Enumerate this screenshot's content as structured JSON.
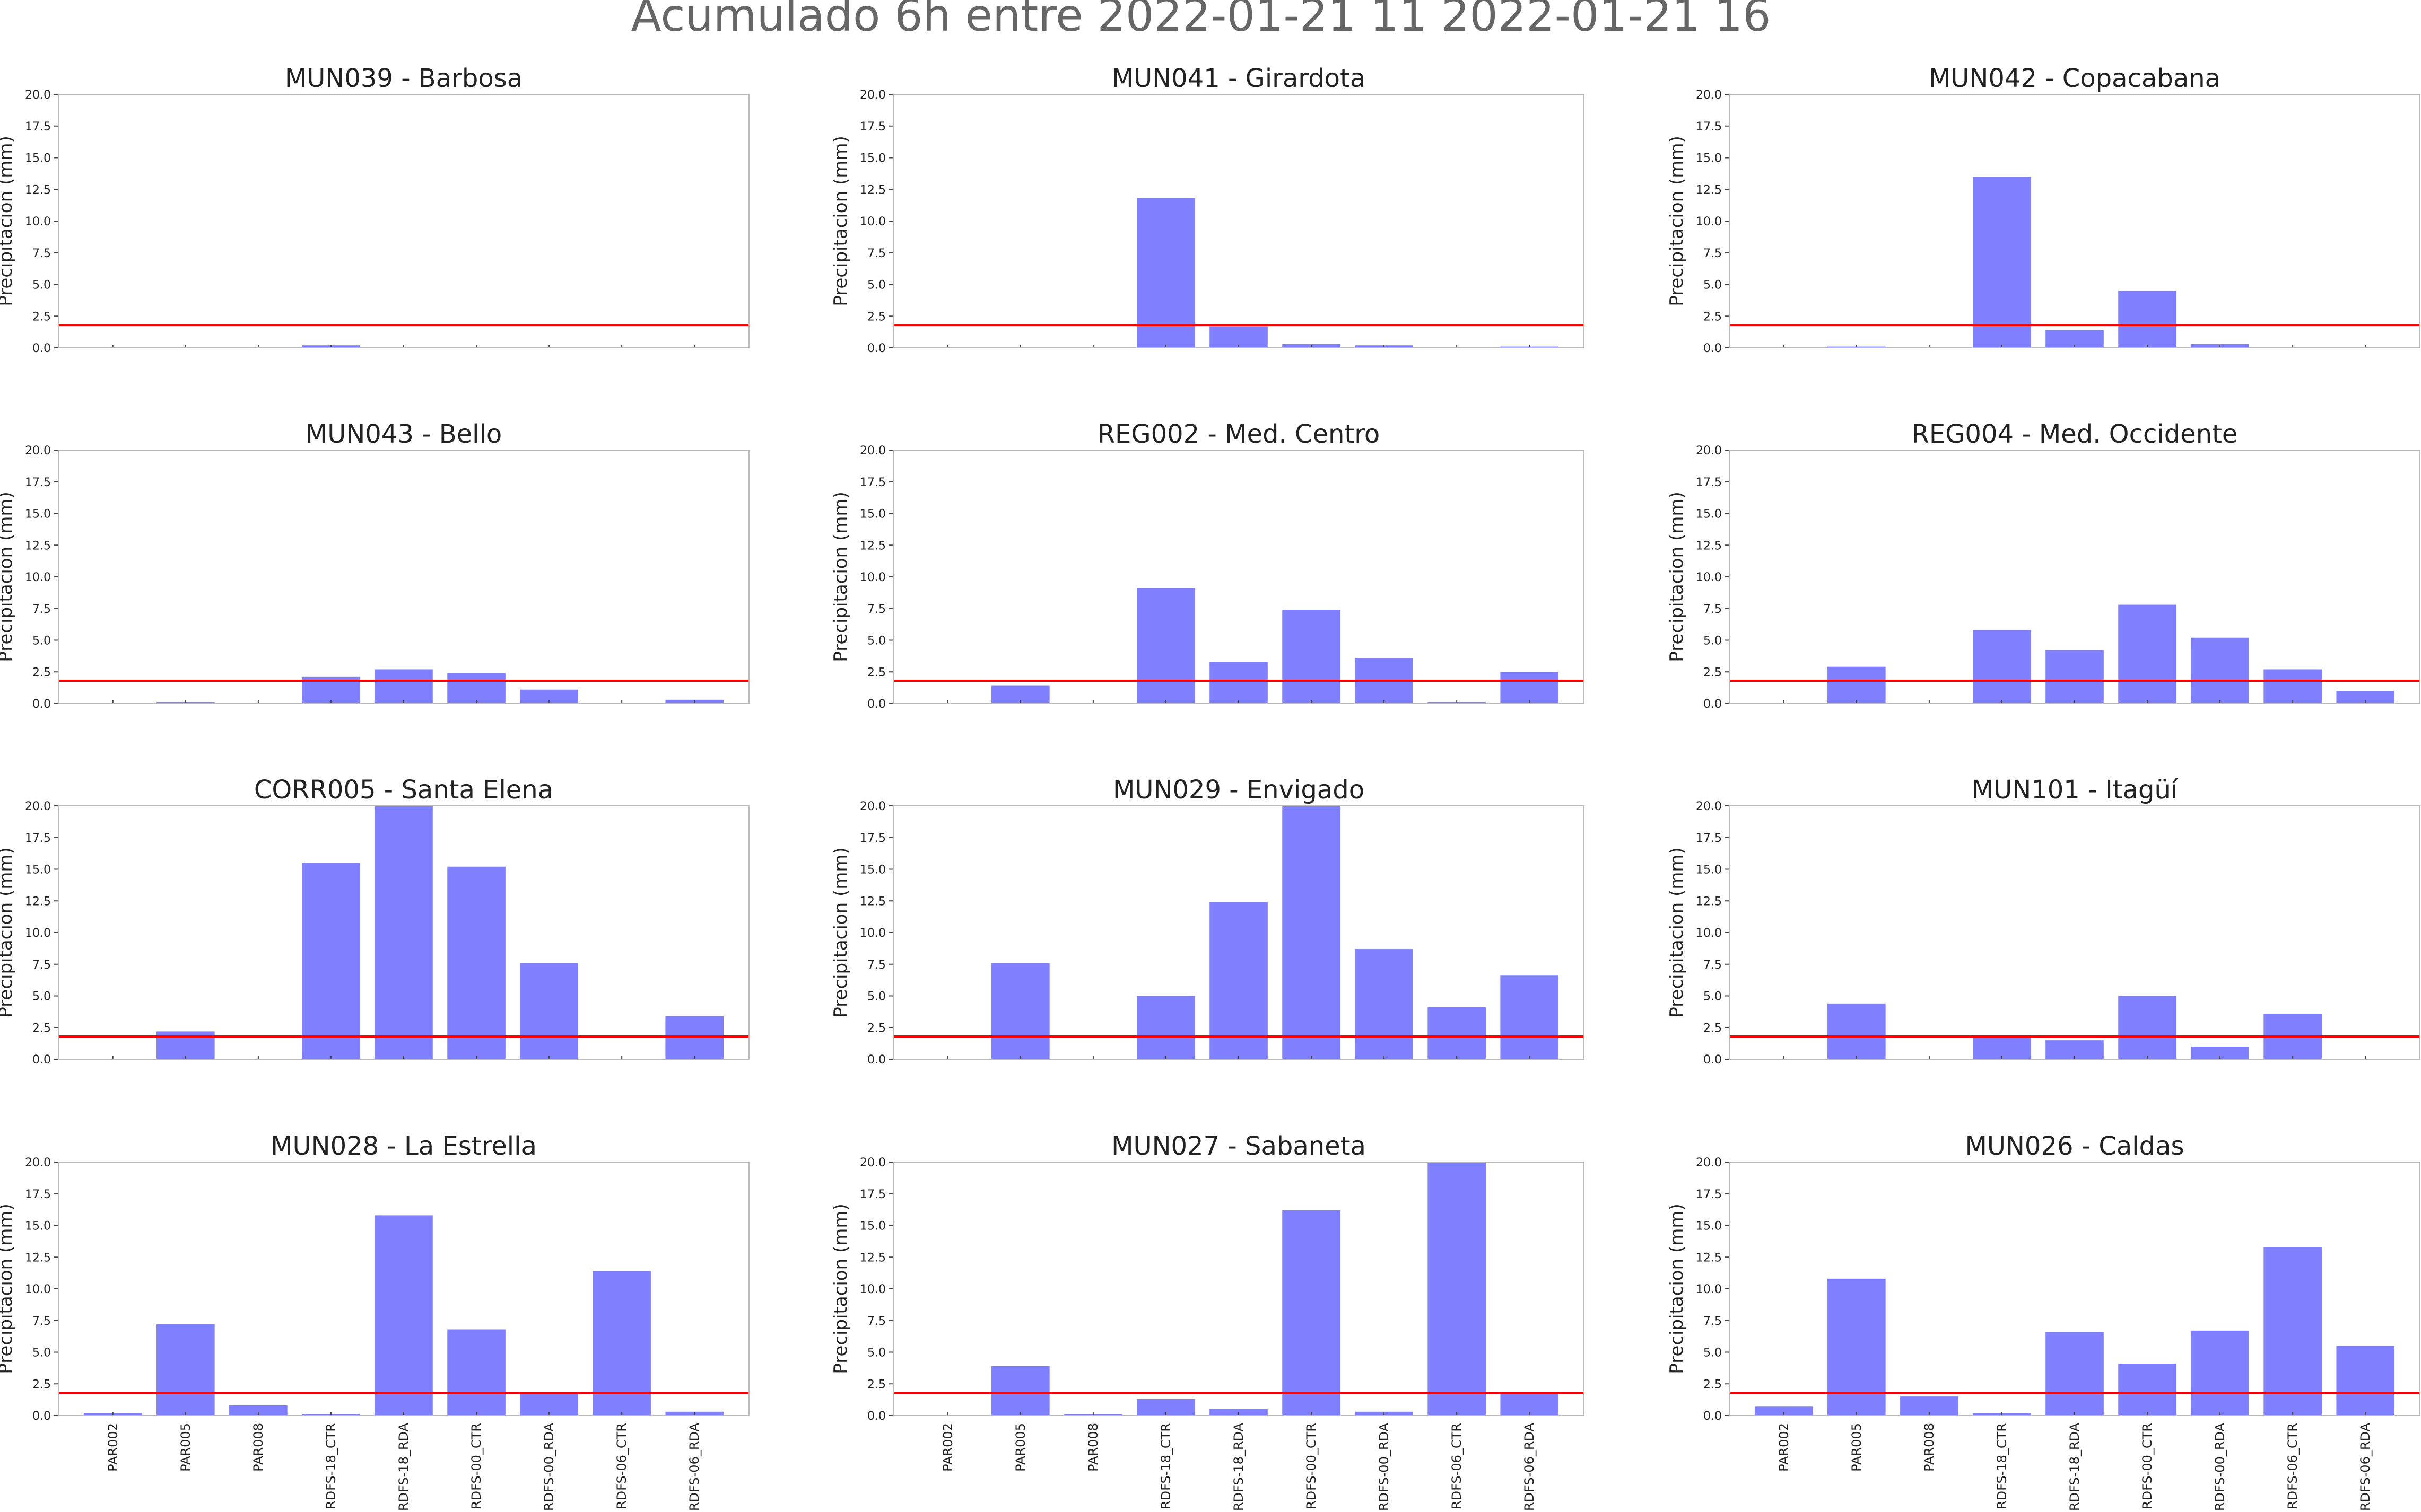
{
  "figure": {
    "title": "Acumulado 6h entre 2022-01-21 11   2022-01-21 16"
  },
  "style": {
    "bar_color": "#8080ff",
    "threshold_color": "#ff0000",
    "axis_color": "#bbbbbb",
    "text_color": "#222222",
    "title_color": "#666666"
  },
  "chart_data": [
    {
      "type": "bar",
      "title": "MUN039 - Barbosa",
      "ylabel": "Precipitacion (mm)",
      "xlabel": "",
      "ylim": [
        0,
        20
      ],
      "threshold": 1.8,
      "categories": [
        "PAR002",
        "PAR005",
        "PAR008",
        "RDFS-18_CTR",
        "RDFS-18_RDA",
        "RDFS-00_CTR",
        "RDFS-00_RDA",
        "RDFS-06_CTR",
        "RDFS-06_RDA"
      ],
      "values": [
        0,
        0,
        0,
        0.2,
        0,
        0,
        0,
        0,
        0
      ]
    },
    {
      "type": "bar",
      "title": "MUN041 - Girardota",
      "ylabel": "Precipitacion (mm)",
      "xlabel": "",
      "ylim": [
        0,
        20
      ],
      "threshold": 1.8,
      "categories": [
        "PAR002",
        "PAR005",
        "PAR008",
        "RDFS-18_CTR",
        "RDFS-18_RDA",
        "RDFS-00_CTR",
        "RDFS-00_RDA",
        "RDFS-06_CTR",
        "RDFS-06_RDA"
      ],
      "values": [
        0,
        0,
        0,
        11.8,
        1.7,
        0.3,
        0.2,
        0,
        0.1
      ]
    },
    {
      "type": "bar",
      "title": "MUN042 - Copacabana",
      "ylabel": "Precipitacion (mm)",
      "xlabel": "",
      "ylim": [
        0,
        20
      ],
      "threshold": 1.8,
      "categories": [
        "PAR002",
        "PAR005",
        "PAR008",
        "RDFS-18_CTR",
        "RDFS-18_RDA",
        "RDFS-00_CTR",
        "RDFS-00_RDA",
        "RDFS-06_CTR",
        "RDFS-06_RDA"
      ],
      "values": [
        0,
        0.1,
        0,
        13.5,
        1.4,
        4.5,
        0.3,
        0,
        0
      ]
    },
    {
      "type": "bar",
      "title": "MUN043 - Bello",
      "ylabel": "Precipitacion (mm)",
      "xlabel": "",
      "ylim": [
        0,
        20
      ],
      "threshold": 1.8,
      "categories": [
        "PAR002",
        "PAR005",
        "PAR008",
        "RDFS-18_CTR",
        "RDFS-18_RDA",
        "RDFS-00_CTR",
        "RDFS-00_RDA",
        "RDFS-06_CTR",
        "RDFS-06_RDA"
      ],
      "values": [
        0,
        0.1,
        0,
        2.1,
        2.7,
        2.4,
        1.1,
        0,
        0.3
      ]
    },
    {
      "type": "bar",
      "title": "REG002 - Med. Centro",
      "ylabel": "Precipitacion (mm)",
      "xlabel": "",
      "ylim": [
        0,
        20
      ],
      "threshold": 1.8,
      "categories": [
        "PAR002",
        "PAR005",
        "PAR008",
        "RDFS-18_CTR",
        "RDFS-18_RDA",
        "RDFS-00_CTR",
        "RDFS-00_RDA",
        "RDFS-06_CTR",
        "RDFS-06_RDA"
      ],
      "values": [
        0,
        1.4,
        0,
        9.1,
        3.3,
        7.4,
        3.6,
        0.1,
        2.5
      ]
    },
    {
      "type": "bar",
      "title": "REG004 - Med. Occidente",
      "ylabel": "Precipitacion (mm)",
      "xlabel": "",
      "ylim": [
        0,
        20
      ],
      "threshold": 1.8,
      "categories": [
        "PAR002",
        "PAR005",
        "PAR008",
        "RDFS-18_CTR",
        "RDFS-18_RDA",
        "RDFS-00_CTR",
        "RDFS-00_RDA",
        "RDFS-06_CTR",
        "RDFS-06_RDA"
      ],
      "values": [
        0,
        2.9,
        0,
        5.8,
        4.2,
        7.8,
        5.2,
        2.7,
        1.0
      ]
    },
    {
      "type": "bar",
      "title": "CORR005 - Santa Elena",
      "ylabel": "Precipitacion (mm)",
      "xlabel": "",
      "ylim": [
        0,
        20
      ],
      "threshold": 1.8,
      "categories": [
        "PAR002",
        "PAR005",
        "PAR008",
        "RDFS-18_CTR",
        "RDFS-18_RDA",
        "RDFS-00_CTR",
        "RDFS-00_RDA",
        "RDFS-06_CTR",
        "RDFS-06_RDA"
      ],
      "values": [
        0,
        2.2,
        0,
        15.5,
        20,
        15.2,
        7.6,
        0,
        3.4
      ]
    },
    {
      "type": "bar",
      "title": "MUN029 - Envigado",
      "ylabel": "Precipitacion (mm)",
      "xlabel": "",
      "ylim": [
        0,
        20
      ],
      "threshold": 1.8,
      "categories": [
        "PAR002",
        "PAR005",
        "PAR008",
        "RDFS-18_CTR",
        "RDFS-18_RDA",
        "RDFS-00_CTR",
        "RDFS-00_RDA",
        "RDFS-06_CTR",
        "RDFS-06_RDA"
      ],
      "values": [
        0,
        7.6,
        0,
        5.0,
        12.4,
        20,
        8.7,
        4.1,
        6.6
      ]
    },
    {
      "type": "bar",
      "title": "MUN101 - Itagüí",
      "ylabel": "Precipitacion (mm)",
      "xlabel": "",
      "ylim": [
        0,
        20
      ],
      "threshold": 1.8,
      "categories": [
        "PAR002",
        "PAR005",
        "PAR008",
        "RDFS-18_CTR",
        "RDFS-18_RDA",
        "RDFS-00_CTR",
        "RDFS-00_RDA",
        "RDFS-06_CTR",
        "RDFS-06_RDA"
      ],
      "values": [
        0,
        4.4,
        0,
        1.8,
        1.5,
        5.0,
        1.0,
        3.6,
        0
      ]
    },
    {
      "type": "bar",
      "title": "MUN028 - La Estrella",
      "ylabel": "Precipitacion (mm)",
      "xlabel": "",
      "ylim": [
        0,
        20
      ],
      "threshold": 1.8,
      "categories": [
        "PAR002",
        "PAR005",
        "PAR008",
        "RDFS-18_CTR",
        "RDFS-18_RDA",
        "RDFS-00_CTR",
        "RDFS-00_RDA",
        "RDFS-06_CTR",
        "RDFS-06_RDA"
      ],
      "values": [
        0.2,
        7.2,
        0.8,
        0.1,
        15.8,
        6.8,
        1.8,
        11.4,
        0.3
      ]
    },
    {
      "type": "bar",
      "title": "MUN027 - Sabaneta",
      "ylabel": "Precipitacion (mm)",
      "xlabel": "",
      "ylim": [
        0,
        20
      ],
      "threshold": 1.8,
      "categories": [
        "PAR002",
        "PAR005",
        "PAR008",
        "RDFS-18_CTR",
        "RDFS-18_RDA",
        "RDFS-00_CTR",
        "RDFS-00_RDA",
        "RDFS-06_CTR",
        "RDFS-06_RDA"
      ],
      "values": [
        0,
        3.9,
        0.1,
        1.3,
        0.5,
        16.2,
        0.3,
        20,
        1.7
      ]
    },
    {
      "type": "bar",
      "title": "MUN026 - Caldas",
      "ylabel": "Precipitacion (mm)",
      "xlabel": "",
      "ylim": [
        0,
        20
      ],
      "threshold": 1.8,
      "categories": [
        "PAR002",
        "PAR005",
        "PAR008",
        "RDFS-18_CTR",
        "RDFS-18_RDA",
        "RDFS-00_CTR",
        "RDFS-00_RDA",
        "RDFS-06_CTR",
        "RDFS-06_RDA"
      ],
      "values": [
        0.7,
        10.8,
        1.5,
        0.2,
        6.6,
        4.1,
        6.7,
        13.3,
        5.5
      ]
    }
  ]
}
